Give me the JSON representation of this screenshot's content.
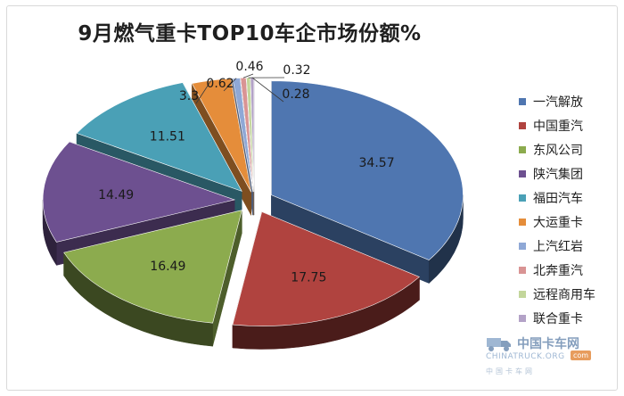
{
  "chart_data": {
    "type": "pie",
    "style": "3d-exploded",
    "title": "9月燃气重卡TOP10车企市场份额%",
    "categories": [
      "一汽解放",
      "中国重汽",
      "东风公司",
      "陕汽集团",
      "福田汽车",
      "大运重卡",
      "上汽红岩",
      "北奔重汽",
      "远程商用车",
      "联合重卡"
    ],
    "values": [
      34.57,
      17.75,
      16.49,
      14.49,
      11.51,
      3.3,
      0.62,
      0.46,
      0.32,
      0.28
    ],
    "value_labels": [
      "34.57",
      "17.75",
      "16.49",
      "14.49",
      "11.51",
      "3.3",
      "0.62",
      "0.46",
      "0.32",
      "0.28"
    ],
    "colors": [
      "#4f76b0",
      "#b0433f",
      "#8cab4e",
      "#6d5090",
      "#4aa0b6",
      "#e58d3a",
      "#8fa8d6",
      "#d99494",
      "#c3d69b",
      "#b3a2c7"
    ],
    "legend_position": "right"
  },
  "watermark": {
    "brand": "中国卡车网",
    "domain": "CHINATRUCK.ORG",
    "badge": "com",
    "tagline": "中国卡车网"
  }
}
